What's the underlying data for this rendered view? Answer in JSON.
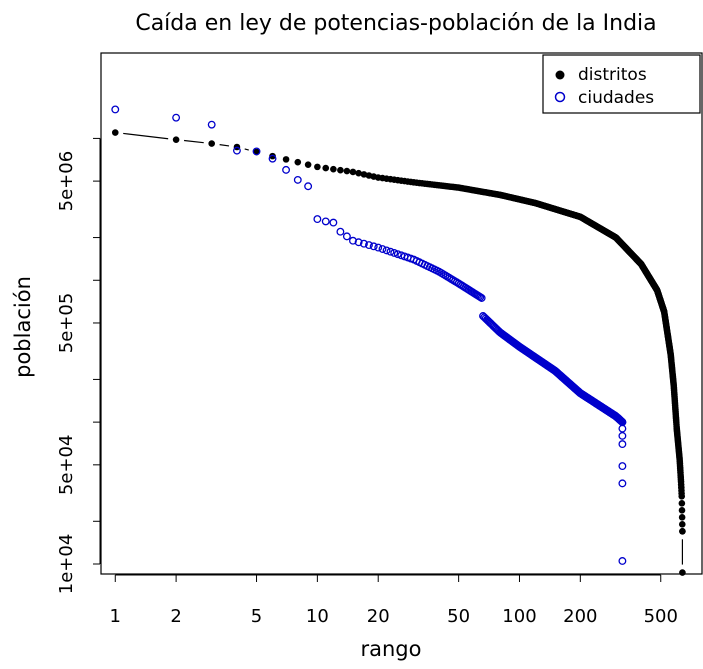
{
  "chart_data": {
    "type": "scatter",
    "title": "Caída en ley de potencias-población de la India",
    "xlabel": "rango",
    "ylabel": "población",
    "xscale": "log",
    "yscale": "log",
    "xlim": [
      0.85,
      800
    ],
    "ylim": [
      8500,
      40000000
    ],
    "x_ticks": [
      1,
      2,
      5,
      10,
      20,
      50,
      100,
      200,
      500
    ],
    "x_tick_labels": [
      "1",
      "2",
      "5",
      "10",
      "20",
      "50",
      "100",
      "200",
      "500"
    ],
    "y_ticks": [
      10000,
      20000,
      50000,
      100000,
      200000,
      500000,
      1000000,
      2000000,
      5000000,
      10000000
    ],
    "y_tick_labels": [
      "1e+04",
      "",
      "5e+04",
      "",
      "",
      "5e+05",
      "",
      "",
      "5e+06",
      ""
    ],
    "legend": {
      "position": "top-right",
      "entries": [
        {
          "label": "distritos",
          "marker": "filled-circle",
          "color": "#000000"
        },
        {
          "label": "ciudades",
          "marker": "open-circle",
          "color": "#0000cc"
        }
      ]
    },
    "series": [
      {
        "name": "distritos",
        "style": "filled",
        "color": "#000000",
        "connect_gaps": true,
        "anchors": [
          [
            1,
            11000000
          ],
          [
            2,
            9800000
          ],
          [
            3,
            9200000
          ],
          [
            4,
            8700000
          ],
          [
            6,
            7500000
          ],
          [
            8,
            6800000
          ],
          [
            10,
            6300000
          ],
          [
            15,
            5800000
          ],
          [
            20,
            5300000
          ],
          [
            30,
            4900000
          ],
          [
            50,
            4500000
          ],
          [
            80,
            4000000
          ],
          [
            120,
            3500000
          ],
          [
            200,
            2800000
          ],
          [
            300,
            2000000
          ],
          [
            400,
            1300000
          ],
          [
            480,
            850000
          ],
          [
            520,
            600000
          ],
          [
            560,
            300000
          ],
          [
            580,
            180000
          ],
          [
            600,
            90000
          ],
          [
            620,
            55000
          ],
          [
            630,
            38000
          ],
          [
            635,
            30000
          ],
          [
            640,
            17000
          ],
          [
            640,
            8700
          ]
        ],
        "n_points": 640
      },
      {
        "name": "ciudades",
        "style": "open",
        "color": "#0000cc",
        "connect_gaps": false,
        "anchors": [
          [
            1,
            16000000
          ],
          [
            2,
            14000000
          ],
          [
            3,
            12500000
          ],
          [
            4,
            8200000
          ],
          [
            5,
            8100000
          ],
          [
            6,
            7200000
          ],
          [
            7,
            6000000
          ],
          [
            8,
            5100000
          ],
          [
            9,
            4600000
          ],
          [
            10,
            2700000
          ],
          [
            11,
            2600000
          ],
          [
            12,
            2550000
          ],
          [
            13,
            2200000
          ],
          [
            15,
            1900000
          ],
          [
            20,
            1700000
          ],
          [
            30,
            1400000
          ],
          [
            40,
            1150000
          ],
          [
            50,
            950000
          ],
          [
            65,
            750000
          ],
          [
            66,
            560000
          ],
          [
            80,
            430000
          ],
          [
            100,
            340000
          ],
          [
            150,
            230000
          ],
          [
            200,
            160000
          ],
          [
            300,
            110000
          ],
          [
            323,
            100000
          ]
        ],
        "n_points": 323,
        "outliers": [
          [
            323,
            90000
          ],
          [
            323,
            80000
          ],
          [
            323,
            70000
          ],
          [
            323,
            49000
          ],
          [
            323,
            37000
          ],
          [
            323,
            10500
          ]
        ]
      }
    ]
  }
}
